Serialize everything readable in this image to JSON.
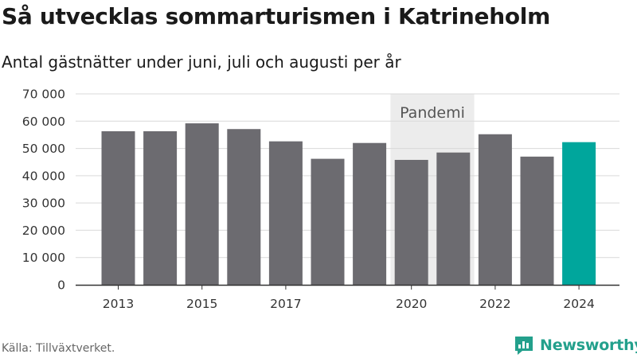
{
  "title": "Så utvecklas sommarturismen i Katrineholm",
  "subtitle": "Antal gästnätter under juni, juli och augusti per år",
  "source": "Källa: Tillväxtverket.",
  "brand": {
    "name": "Newsworthy",
    "icon": "newsworthy-chat-chart-icon",
    "color": "#23a08c"
  },
  "colors": {
    "bar": "#6c6b70",
    "highlight": "#00a69c",
    "band": "#ececec",
    "grid": "#d9d9d9",
    "axis": "#333333"
  },
  "chart_data": {
    "type": "bar",
    "title": "Så utvecklas sommarturismen i Katrineholm",
    "subtitle": "Antal gästnätter under juni, juli och augusti per år",
    "categories": [
      "2013",
      "2014",
      "2015",
      "2016",
      "2017",
      "2018",
      "2019",
      "2020",
      "2021",
      "2022",
      "2023",
      "2024"
    ],
    "values": [
      56300,
      56300,
      59200,
      57100,
      52600,
      46200,
      52000,
      45800,
      48500,
      55200,
      47000,
      52300
    ],
    "highlight": "2024",
    "xtick_labels": [
      "2013",
      "2015",
      "2017",
      "2020",
      "2022",
      "2024"
    ],
    "ylim": [
      0,
      70000
    ],
    "yticks": [
      0,
      10000,
      20000,
      30000,
      40000,
      50000,
      60000,
      70000
    ],
    "ytick_labels": [
      "0",
      "10 000",
      "20 000",
      "30 000",
      "40 000",
      "50 000",
      "60 000",
      "70 000"
    ],
    "xlabel": "",
    "ylabel": "",
    "grid": true,
    "legend": "none",
    "annotations": [
      {
        "label": "Pandemi",
        "from": "2020",
        "to": "2021"
      }
    ]
  }
}
